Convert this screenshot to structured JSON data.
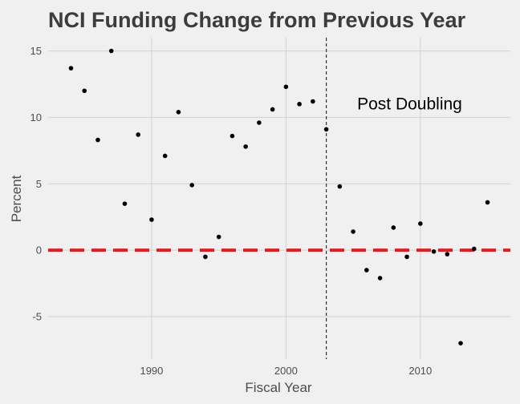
{
  "chart_data": {
    "type": "scatter",
    "title": "NCI Funding Change from Previous Year",
    "xlabel": "Fiscal Year",
    "ylabel": "Percent",
    "xlim": [
      1982.3,
      2016.7
    ],
    "ylim": [
      -8.2,
      16.0
    ],
    "x_ticks": [
      1990,
      2000,
      2010
    ],
    "y_ticks": [
      15,
      10,
      5,
      0,
      -5
    ],
    "grid": true,
    "points": [
      {
        "x": 1984,
        "y": 13.7
      },
      {
        "x": 1985,
        "y": 12.0
      },
      {
        "x": 1986,
        "y": 8.3
      },
      {
        "x": 1987,
        "y": 15.0
      },
      {
        "x": 1988,
        "y": 3.5
      },
      {
        "x": 1989,
        "y": 8.7
      },
      {
        "x": 1990,
        "y": 2.3
      },
      {
        "x": 1991,
        "y": 7.1
      },
      {
        "x": 1992,
        "y": 10.4
      },
      {
        "x": 1993,
        "y": 4.9
      },
      {
        "x": 1994,
        "y": -0.5
      },
      {
        "x": 1995,
        "y": 1.0
      },
      {
        "x": 1996,
        "y": 8.6
      },
      {
        "x": 1997,
        "y": 7.8
      },
      {
        "x": 1998,
        "y": 9.6
      },
      {
        "x": 1999,
        "y": 10.6
      },
      {
        "x": 2000,
        "y": 12.3
      },
      {
        "x": 2001,
        "y": 11.0
      },
      {
        "x": 2002,
        "y": 11.2
      },
      {
        "x": 2003,
        "y": 9.1
      },
      {
        "x": 2004,
        "y": 4.8
      },
      {
        "x": 2005,
        "y": 1.4
      },
      {
        "x": 2006,
        "y": -1.5
      },
      {
        "x": 2007,
        "y": -2.1
      },
      {
        "x": 2008,
        "y": 1.7
      },
      {
        "x": 2009,
        "y": -0.5
      },
      {
        "x": 2010,
        "y": 2.0
      },
      {
        "x": 2011,
        "y": -0.1
      },
      {
        "x": 2012,
        "y": -0.3
      },
      {
        "x": 2013,
        "y": -7.0
      },
      {
        "x": 2014,
        "y": 0.1
      },
      {
        "x": 2015,
        "y": 3.6
      }
    ],
    "reference_lines": {
      "horizontal": {
        "y": 0,
        "color": "#E41A1C",
        "style": "dashed"
      },
      "vertical": {
        "x": 2003,
        "color": "#333333",
        "style": "dotted"
      }
    },
    "annotations": [
      {
        "text": "Post Doubling",
        "x": 2005.3,
        "y": 10.6
      }
    ],
    "colors": {
      "background": "#F0F0F0",
      "grid": "#D2D2D2",
      "point": "#000000"
    }
  }
}
